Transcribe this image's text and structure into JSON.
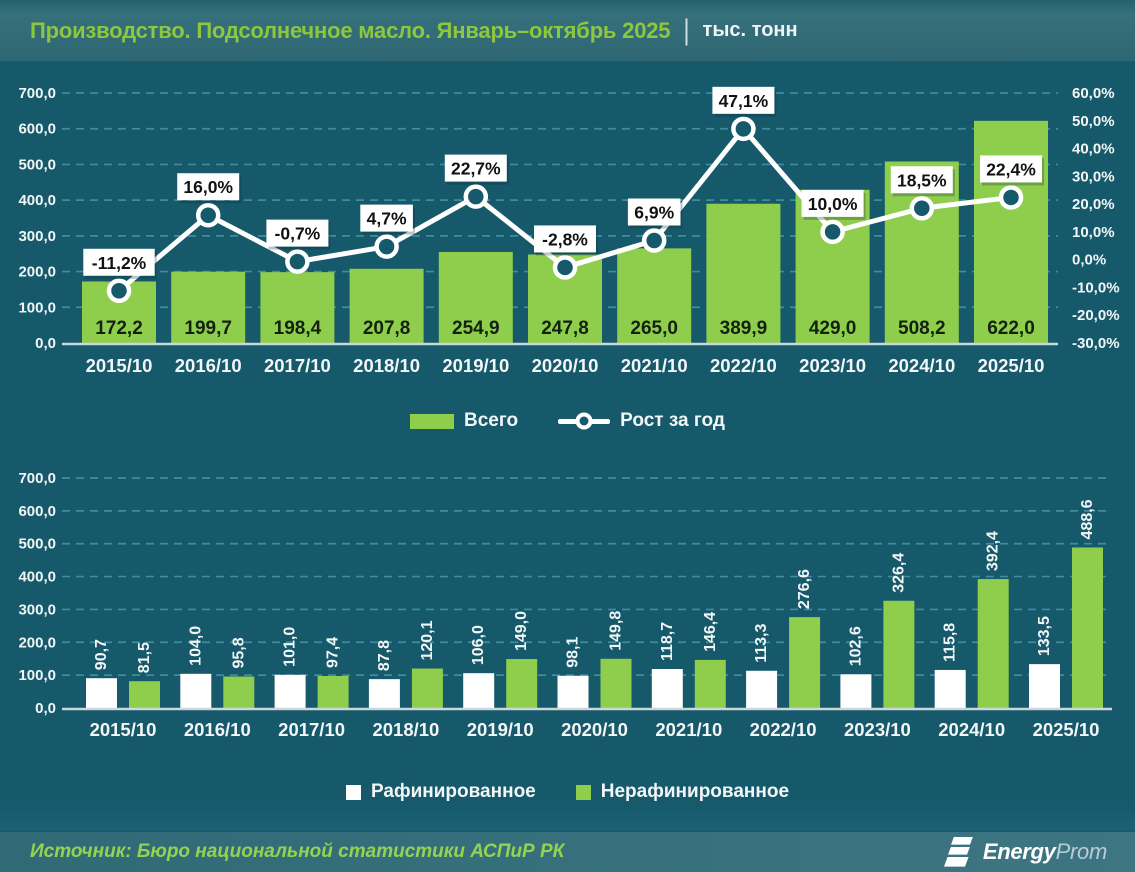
{
  "header": {
    "title": "Производство. Подсолнечное масло. Январь–октябрь 2025",
    "separator": "|",
    "unit": "тыс. тонн"
  },
  "colors": {
    "background": "#15596b",
    "bar_green": "#8fce4c",
    "title_green": "#8dc63f",
    "grid": "#4695a8",
    "axis_line": "#ccd7d9",
    "line_white": "#ffffff",
    "marker_fill": "#15596b",
    "bar_label_dark": "#13210f",
    "axis_text": "#f2f6f7",
    "callout_bg": "#ffffff",
    "callout_text": "#111111"
  },
  "chart_data": [
    {
      "type": "bar+line",
      "categories": [
        "2015/10",
        "2016/10",
        "2017/10",
        "2018/10",
        "2019/10",
        "2020/10",
        "2021/10",
        "2022/10",
        "2023/10",
        "2024/10",
        "2025/10"
      ],
      "series": [
        {
          "name": "Всего",
          "type": "bar",
          "color": "#8fce4c",
          "values": [
            172.2,
            199.7,
            198.4,
            207.8,
            254.9,
            247.8,
            265.0,
            389.9,
            429.0,
            508.2,
            622.0
          ],
          "labels": [
            "172,2",
            "199,7",
            "198,4",
            "207,8",
            "254,9",
            "247,8",
            "265,0",
            "389,9",
            "429,0",
            "508,2",
            "622,0"
          ]
        },
        {
          "name": "Рост за год",
          "type": "line",
          "color": "#ffffff",
          "values": [
            -11.2,
            16.0,
            -0.7,
            4.7,
            22.7,
            -2.8,
            6.9,
            47.1,
            10.0,
            18.5,
            22.4
          ],
          "labels": [
            "-11,2%",
            "16,0%",
            "-0,7%",
            "4,7%",
            "22,7%",
            "-2,8%",
            "6,9%",
            "47,1%",
            "10,0%",
            "18,5%",
            "22,4%"
          ]
        }
      ],
      "left_axis": {
        "min": 0,
        "max": 700,
        "step": 100,
        "labels": [
          "0,0",
          "100,0",
          "200,0",
          "300,0",
          "400,0",
          "500,0",
          "600,0",
          "700,0"
        ]
      },
      "right_axis": {
        "min": -30,
        "max": 60,
        "step": 10,
        "labels": [
          "-30,0%",
          "-20,0%",
          "-10,0%",
          "0,0%",
          "10,0%",
          "20,0%",
          "30,0%",
          "40,0%",
          "50,0%",
          "60,0%"
        ]
      },
      "grid": true,
      "legend_position": "bottom"
    },
    {
      "type": "grouped-bar",
      "categories": [
        "2015/10",
        "2016/10",
        "2017/10",
        "2018/10",
        "2019/10",
        "2020/10",
        "2021/10",
        "2022/10",
        "2023/10",
        "2024/10",
        "2025/10"
      ],
      "series": [
        {
          "name": "Рафинированное",
          "color": "#ffffff",
          "values": [
            90.7,
            104.0,
            101.0,
            87.8,
            106.0,
            98.1,
            118.7,
            113.3,
            102.6,
            115.8,
            133.5
          ],
          "labels": [
            "90,7",
            "104,0",
            "101,0",
            "87,8",
            "106,0",
            "98,1",
            "118,7",
            "113,3",
            "102,6",
            "115,8",
            "133,5"
          ]
        },
        {
          "name": "Нерафинированное",
          "color": "#8fce4c",
          "values": [
            81.5,
            95.8,
            97.4,
            120.1,
            149.0,
            149.8,
            146.4,
            276.6,
            326.4,
            392.4,
            488.6
          ],
          "labels": [
            "81,5",
            "95,8",
            "97,4",
            "120,1",
            "149,0",
            "149,8",
            "146,4",
            "276,6",
            "326,4",
            "392,4",
            "488,6"
          ]
        }
      ],
      "left_axis": {
        "min": 0,
        "max": 700,
        "step": 100,
        "labels": [
          "0,0",
          "100,0",
          "200,0",
          "300,0",
          "400,0",
          "500,0",
          "600,0",
          "700,0"
        ]
      },
      "grid": true,
      "legend_position": "bottom"
    }
  ],
  "footer": {
    "source": "Источник: Бюро национальной статистики АСПиР РК",
    "logo_bold": "Energy",
    "logo_light": "Prom"
  }
}
